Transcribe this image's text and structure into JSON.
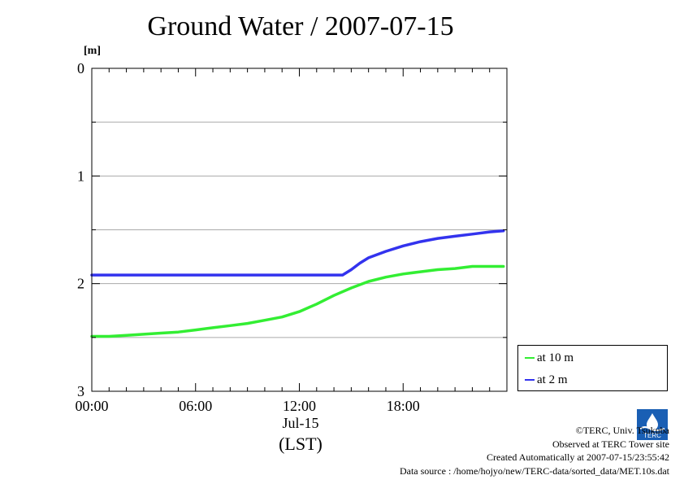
{
  "title": "Ground Water / 2007-07-15",
  "y_unit": "[m]",
  "x_date_label": "Jul-15",
  "x_unit_label": "(LST)",
  "colors": {
    "at_10m": "#33ee33",
    "at_2m": "#3333ee",
    "grid": "#aaaaaa"
  },
  "legend": [
    {
      "label": "at 10 m",
      "color": "#33ee33"
    },
    {
      "label": "at 2 m",
      "color": "#3333ee"
    }
  ],
  "footer": {
    "credit": "©TERC, Univ. Tsukuba",
    "site": "Observed at TERC Tower site",
    "created": "Created Automatically at 2007-07-15/23:55:42",
    "source": "Data source : /home/hojyo/new/TERC-data/sorted_data/MET.10s.dat"
  },
  "logo_text": "TERC",
  "chart_data": {
    "type": "line",
    "title": "Ground Water / 2007-07-15",
    "ylabel": "[m]",
    "xlabel": "(LST)",
    "x_ticks": [
      "00:00",
      "06:00",
      "12:00",
      "18:00"
    ],
    "x_tick_hours": [
      0,
      6,
      12,
      18
    ],
    "y_ticks": [
      "0",
      "1",
      "2",
      "3"
    ],
    "y_tick_values": [
      0,
      1,
      2,
      3
    ],
    "xlim_hours": [
      0,
      24
    ],
    "ylim": [
      0,
      3
    ],
    "y_inverted": true,
    "grid": true,
    "legend_position": "bottom-right-outside",
    "series": [
      {
        "name": "at 10 m",
        "x_hours": [
          0,
          1,
          2,
          3,
          4,
          5,
          6,
          7,
          8,
          9,
          10,
          11,
          12,
          13,
          14,
          15,
          16,
          17,
          18,
          19,
          20,
          21,
          22,
          23,
          23.8
        ],
        "values": [
          2.49,
          2.49,
          2.48,
          2.47,
          2.46,
          2.45,
          2.43,
          2.41,
          2.39,
          2.37,
          2.34,
          2.31,
          2.26,
          2.19,
          2.11,
          2.04,
          1.98,
          1.94,
          1.91,
          1.89,
          1.87,
          1.86,
          1.84,
          1.84,
          1.84
        ]
      },
      {
        "name": "at 2 m",
        "x_hours": [
          0,
          2,
          4,
          6,
          8,
          10,
          12,
          13,
          14,
          14.5,
          15,
          15.5,
          16,
          17,
          18,
          19,
          20,
          21,
          22,
          23,
          23.8
        ],
        "values": [
          1.92,
          1.92,
          1.92,
          1.92,
          1.92,
          1.92,
          1.92,
          1.92,
          1.92,
          1.92,
          1.87,
          1.81,
          1.76,
          1.7,
          1.65,
          1.61,
          1.58,
          1.56,
          1.54,
          1.52,
          1.51
        ]
      }
    ]
  }
}
